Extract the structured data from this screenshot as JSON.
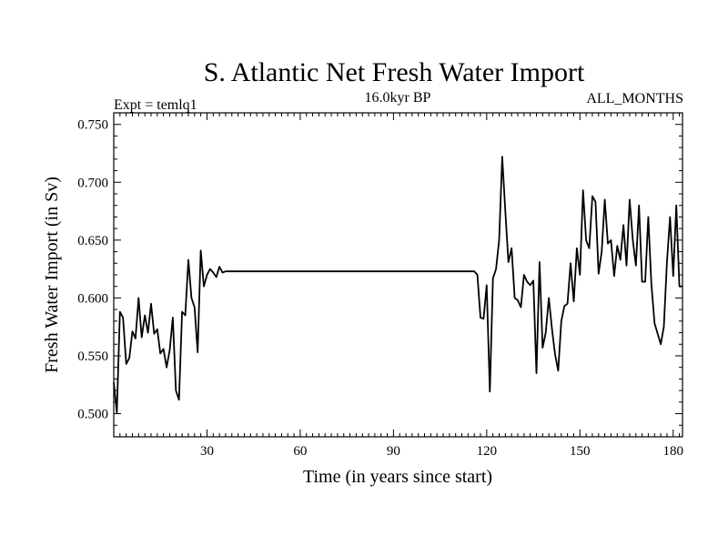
{
  "chart_data": {
    "type": "line",
    "title": "S. Atlantic Net Fresh Water Import",
    "subtitle_left": "Expt = temlq1",
    "subtitle_center": "16.0kyr BP",
    "subtitle_right": "ALL_MONTHS",
    "xlabel": "Time (in years since start)",
    "ylabel": "Fresh Water Import (in Sv)",
    "xlim": [
      0,
      183
    ],
    "ylim": [
      0.48,
      0.76
    ],
    "xticks": [
      30,
      60,
      90,
      120,
      150,
      180
    ],
    "xtick_labels": [
      "30",
      "60",
      "90",
      "120",
      "150",
      "180"
    ],
    "yticks": [
      0.5,
      0.55,
      0.6,
      0.65,
      0.7,
      0.75
    ],
    "ytick_labels": [
      "0.500",
      "0.550",
      "0.600",
      "0.650",
      "0.700",
      "0.750"
    ],
    "series": [
      {
        "name": "Fresh Water Import",
        "x": [
          0,
          1,
          2,
          3,
          4,
          5,
          6,
          7,
          8,
          9,
          10,
          11,
          12,
          13,
          14,
          15,
          16,
          17,
          18,
          19,
          20,
          21,
          22,
          23,
          24,
          25,
          26,
          27,
          28,
          29,
          30,
          31,
          32,
          33,
          34,
          35,
          36,
          37,
          38,
          114,
          115,
          116,
          117,
          118,
          119,
          120,
          121,
          122,
          123,
          124,
          125,
          126,
          127,
          128,
          129,
          130,
          131,
          132,
          133,
          134,
          135,
          136,
          137,
          138,
          139,
          140,
          141,
          142,
          143,
          144,
          145,
          146,
          147,
          148,
          149,
          150,
          151,
          152,
          153,
          154,
          155,
          156,
          157,
          158,
          159,
          160,
          161,
          162,
          163,
          164,
          165,
          166,
          167,
          168,
          169,
          170,
          171,
          172,
          173,
          174,
          175,
          176,
          177,
          178,
          179,
          180,
          181,
          182,
          183
        ],
        "y": [
          0.527,
          0.501,
          0.588,
          0.583,
          0.543,
          0.548,
          0.571,
          0.565,
          0.6,
          0.566,
          0.585,
          0.57,
          0.595,
          0.569,
          0.573,
          0.552,
          0.556,
          0.54,
          0.555,
          0.583,
          0.52,
          0.512,
          0.588,
          0.585,
          0.633,
          0.6,
          0.592,
          0.553,
          0.641,
          0.61,
          0.62,
          0.625,
          0.622,
          0.618,
          0.627,
          0.622,
          0.623,
          0.623,
          0.623,
          0.623,
          0.623,
          0.623,
          0.62,
          0.583,
          0.582,
          0.611,
          0.519,
          0.617,
          0.625,
          0.65,
          0.722,
          0.675,
          0.631,
          0.643,
          0.6,
          0.598,
          0.592,
          0.62,
          0.614,
          0.611,
          0.615,
          0.535,
          0.631,
          0.557,
          0.57,
          0.6,
          0.573,
          0.551,
          0.537,
          0.58,
          0.593,
          0.595,
          0.63,
          0.597,
          0.643,
          0.62,
          0.693,
          0.65,
          0.643,
          0.688,
          0.683,
          0.621,
          0.64,
          0.685,
          0.647,
          0.65,
          0.619,
          0.645,
          0.633,
          0.663,
          0.628,
          0.685,
          0.65,
          0.628,
          0.68,
          0.614,
          0.614,
          0.67,
          0.612,
          0.578,
          0.569,
          0.56,
          0.575,
          0.631,
          0.67,
          0.619,
          0.68,
          0.61,
          0.61
        ]
      }
    ]
  }
}
